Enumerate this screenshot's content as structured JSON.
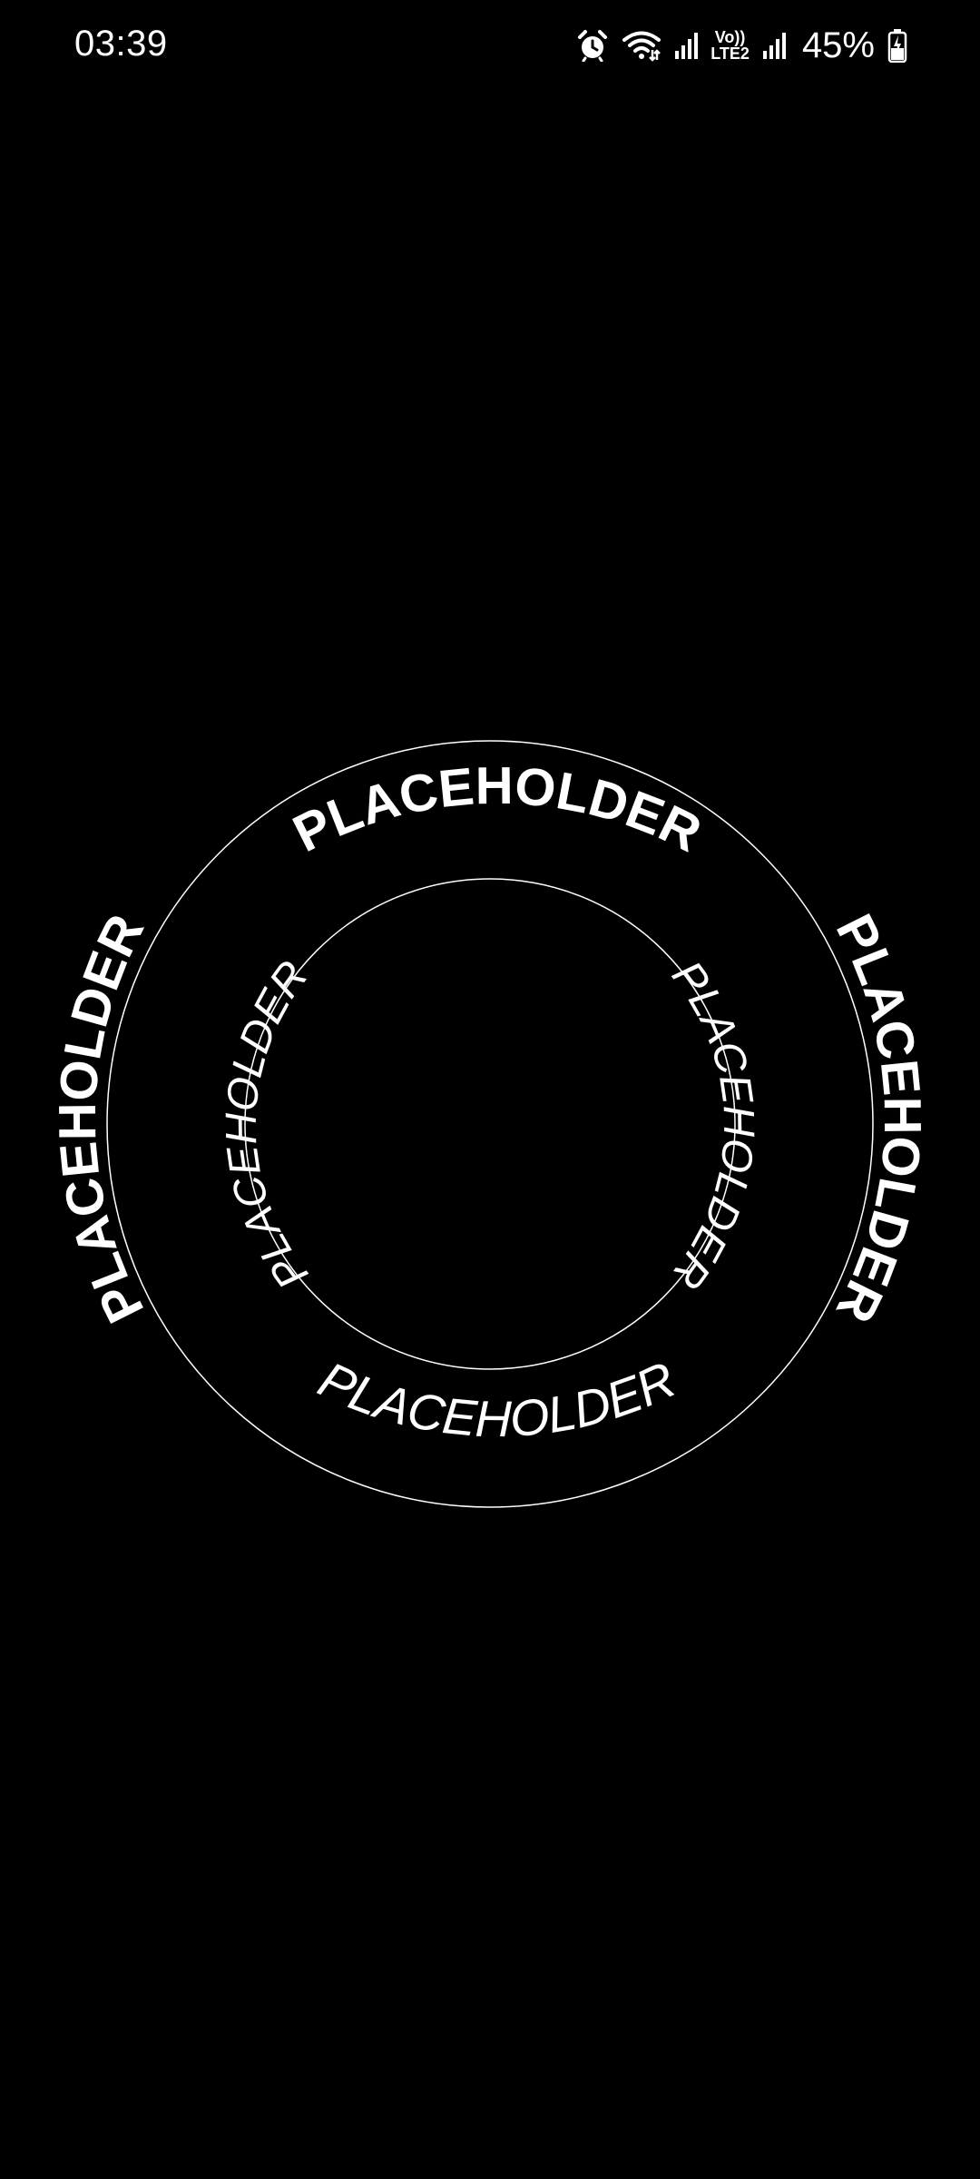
{
  "status_bar": {
    "time": "03:39",
    "network_line1": "Vo))",
    "network_line2": "LTE2",
    "battery_percent": "45%",
    "icons": [
      "alarm-icon",
      "wifi-icon",
      "signal-icon",
      "signal-icon",
      "battery-charging-icon"
    ]
  },
  "dial": {
    "outer_ring": {
      "top_label": "PLACEHOLDER",
      "left_label": "PLACEHOLDER",
      "right_label": "PLACEHOLDER",
      "bottom_label": "PLACEHOLDER"
    },
    "inner_ring": {
      "left_label": "PLACEHOLDER",
      "right_label": "PLACEHOLDER"
    }
  }
}
